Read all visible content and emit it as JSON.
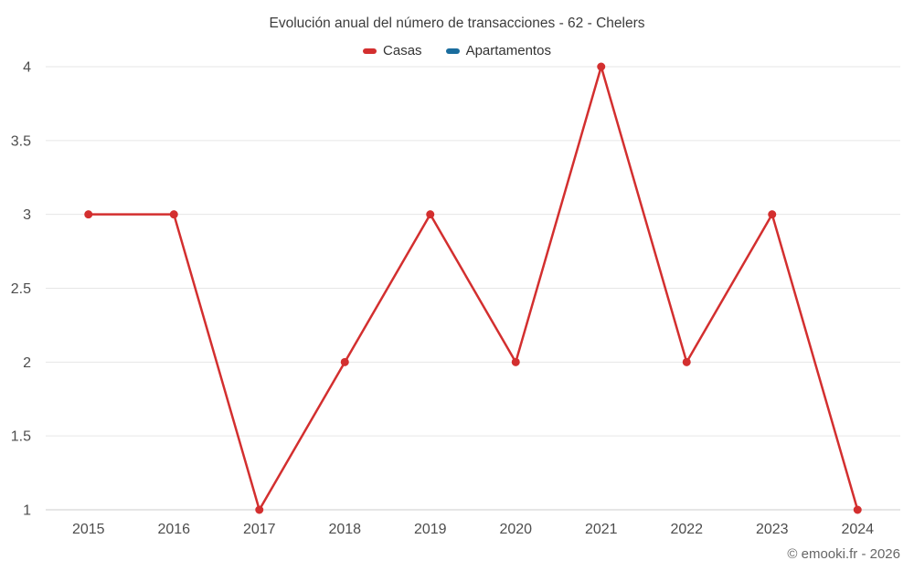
{
  "footer": {
    "text": "© emooki.fr - 2026"
  },
  "legend": {
    "items": [
      {
        "label": "Casas",
        "color": "#d32f2f"
      },
      {
        "label": "Apartamentos",
        "color": "#1a6d9e"
      }
    ]
  },
  "chart_data": {
    "type": "line",
    "title": "Evolución anual del número de transacciones - 62 - Chelers",
    "categories": [
      "2015",
      "2016",
      "2017",
      "2018",
      "2019",
      "2020",
      "2021",
      "2022",
      "2023",
      "2024"
    ],
    "series": [
      {
        "name": "Casas",
        "color": "#d32f2f",
        "values": [
          3,
          3,
          1,
          2,
          3,
          2,
          4,
          2,
          3,
          1
        ]
      },
      {
        "name": "Apartamentos",
        "color": "#1a6d9e",
        "values": []
      }
    ],
    "xlabel": "",
    "ylabel": "",
    "ylim": [
      1,
      4
    ],
    "yticks": [
      1,
      1.5,
      2,
      2.5,
      3,
      3.5,
      4
    ],
    "grid": true,
    "legend_position": "top",
    "grid_color": "#e6e6e6",
    "axis_line_color": "#cccccc",
    "text_color": "#4d4d4d"
  }
}
